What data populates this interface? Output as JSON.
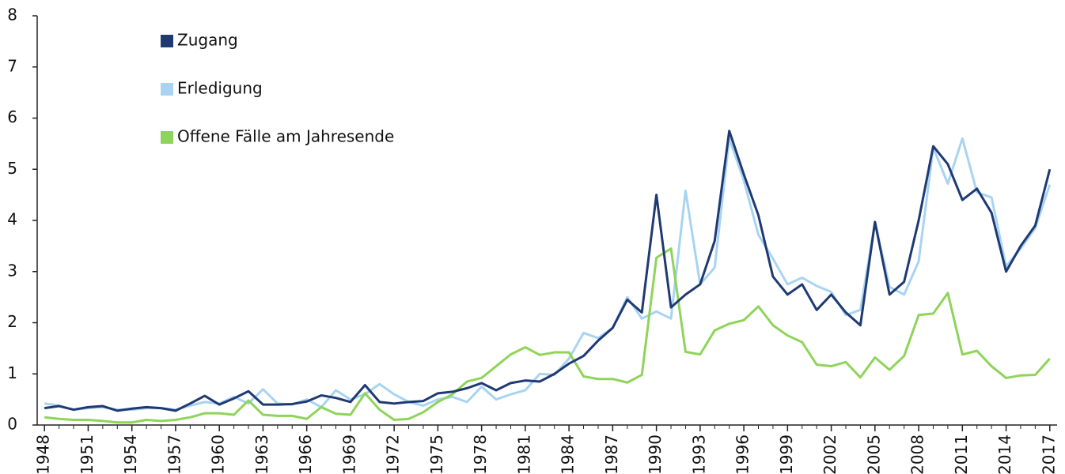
{
  "chart_data": {
    "type": "line",
    "x": [
      1948,
      1949,
      1950,
      1951,
      1952,
      1953,
      1954,
      1955,
      1956,
      1957,
      1958,
      1959,
      1960,
      1961,
      1962,
      1963,
      1964,
      1965,
      1966,
      1967,
      1968,
      1969,
      1970,
      1971,
      1972,
      1973,
      1974,
      1975,
      1976,
      1977,
      1978,
      1979,
      1980,
      1981,
      1982,
      1983,
      1984,
      1985,
      1986,
      1987,
      1988,
      1989,
      1990,
      1991,
      1992,
      1993,
      1994,
      1995,
      1996,
      1997,
      1998,
      1999,
      2000,
      2001,
      2002,
      2003,
      2004,
      2005,
      2006,
      2007,
      2008,
      2009,
      2010,
      2011,
      2012,
      2013,
      2014,
      2015,
      2016,
      2017
    ],
    "series": [
      {
        "name": "Zugang",
        "color": "#1f3a73",
        "values": [
          0.33,
          0.37,
          0.3,
          0.35,
          0.37,
          0.28,
          0.32,
          0.35,
          0.33,
          0.28,
          0.42,
          0.57,
          0.4,
          0.52,
          0.66,
          0.4,
          0.4,
          0.41,
          0.46,
          0.58,
          0.53,
          0.45,
          0.78,
          0.45,
          0.42,
          0.45,
          0.47,
          0.62,
          0.65,
          0.72,
          0.82,
          0.68,
          0.82,
          0.87,
          0.85,
          1.0,
          1.2,
          1.35,
          1.65,
          1.9,
          2.45,
          2.2,
          4.5,
          2.3,
          2.55,
          2.75,
          3.6,
          5.75,
          4.9,
          4.1,
          2.9,
          2.55,
          2.75,
          2.25,
          2.55,
          2.2,
          1.95,
          3.97,
          2.55,
          2.8,
          4.0,
          5.45,
          5.1,
          4.4,
          4.62,
          4.15,
          3.0,
          3.5,
          3.9,
          5.0
        ]
      },
      {
        "name": "Erledigung",
        "color": "#a8d4f2",
        "values": [
          0.42,
          0.38,
          0.3,
          0.33,
          0.35,
          0.3,
          0.3,
          0.33,
          0.33,
          0.3,
          0.38,
          0.45,
          0.42,
          0.55,
          0.42,
          0.7,
          0.42,
          0.4,
          0.5,
          0.35,
          0.68,
          0.5,
          0.6,
          0.8,
          0.6,
          0.45,
          0.38,
          0.5,
          0.55,
          0.45,
          0.75,
          0.5,
          0.6,
          0.68,
          1.0,
          0.98,
          1.3,
          1.8,
          1.7,
          1.9,
          2.5,
          2.08,
          2.22,
          2.08,
          4.58,
          2.75,
          3.08,
          5.6,
          4.78,
          3.72,
          3.25,
          2.75,
          2.88,
          2.72,
          2.6,
          2.15,
          2.25,
          3.97,
          2.7,
          2.55,
          3.2,
          5.42,
          4.72,
          5.6,
          4.55,
          4.45,
          3.1,
          3.45,
          3.85,
          4.7
        ]
      },
      {
        "name": "Offene Fälle am Jahresende",
        "color": "#8fd45a",
        "values": [
          0.15,
          0.12,
          0.1,
          0.1,
          0.08,
          0.05,
          0.05,
          0.1,
          0.08,
          0.1,
          0.15,
          0.23,
          0.23,
          0.2,
          0.48,
          0.2,
          0.18,
          0.18,
          0.12,
          0.35,
          0.22,
          0.2,
          0.62,
          0.3,
          0.1,
          0.12,
          0.25,
          0.45,
          0.6,
          0.85,
          0.92,
          1.15,
          1.38,
          1.52,
          1.37,
          1.42,
          1.42,
          0.95,
          0.9,
          0.9,
          0.83,
          0.98,
          3.27,
          3.45,
          1.43,
          1.38,
          1.85,
          1.98,
          2.05,
          2.32,
          1.95,
          1.75,
          1.62,
          1.18,
          1.15,
          1.23,
          0.93,
          1.32,
          1.08,
          1.35,
          2.15,
          2.18,
          2.58,
          1.38,
          1.45,
          1.15,
          0.92,
          0.97,
          0.98,
          1.3
        ]
      }
    ],
    "xlim": [
      1947.5,
      2017.5
    ],
    "xticks": [
      1948,
      1951,
      1954,
      1957,
      1960,
      1963,
      1966,
      1969,
      1972,
      1975,
      1978,
      1981,
      1984,
      1987,
      1990,
      1993,
      1996,
      1999,
      2002,
      2005,
      2008,
      2011,
      2014,
      2017
    ],
    "ylim": [
      0,
      8
    ],
    "yticks": [
      0,
      1,
      2,
      3,
      4,
      5,
      6,
      7,
      8
    ]
  }
}
